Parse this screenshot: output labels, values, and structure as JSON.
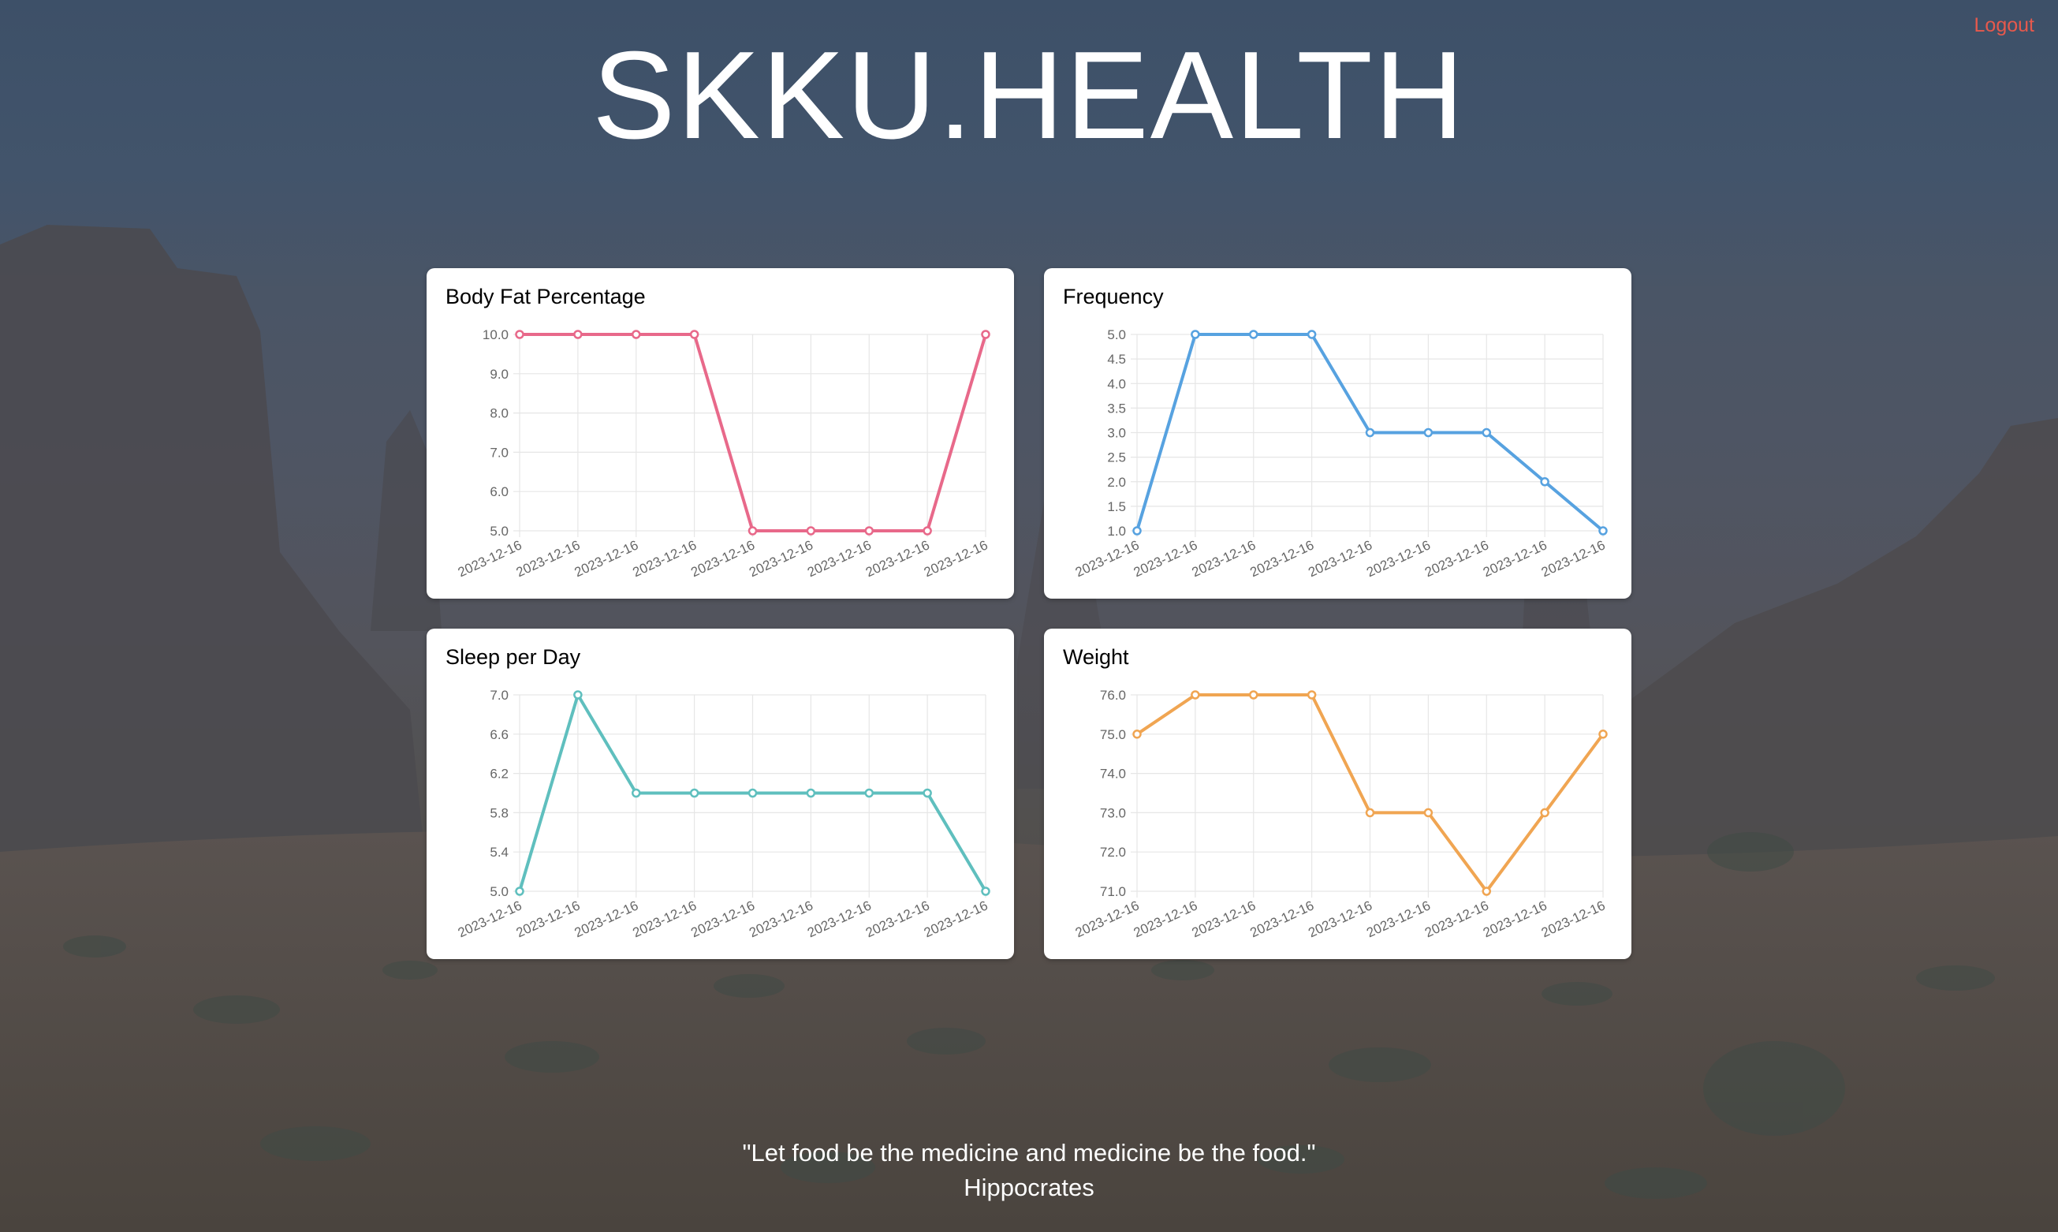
{
  "header": {
    "title": "SKKU.HEALTH",
    "logout_label": "Logout"
  },
  "quote": {
    "text": "\"Let food be the medicine and medicine be the food.\"",
    "author": "Hippocrates"
  },
  "colors": {
    "logout": "#e7594c",
    "body_fat": "#e8698a",
    "frequency": "#57a2e0",
    "sleep": "#5fbfbe",
    "weight": "#f0a552"
  },
  "chart_data": [
    {
      "type": "line",
      "title": "Body Fat Percentage",
      "color": "#e8698a",
      "categories": [
        "2023-12-16",
        "2023-12-16",
        "2023-12-16",
        "2023-12-16",
        "2023-12-16",
        "2023-12-16",
        "2023-12-16",
        "2023-12-16",
        "2023-12-16"
      ],
      "values": [
        10,
        10,
        10,
        10,
        5,
        5,
        5,
        5,
        10
      ],
      "ylim": [
        5,
        10
      ],
      "yticks": [
        "5.0",
        "6.0",
        "7.0",
        "8.0",
        "9.0",
        "10.0"
      ],
      "grid": true,
      "legend": "none"
    },
    {
      "type": "line",
      "title": "Frequency",
      "color": "#57a2e0",
      "categories": [
        "2023-12-16",
        "2023-12-16",
        "2023-12-16",
        "2023-12-16",
        "2023-12-16",
        "2023-12-16",
        "2023-12-16",
        "2023-12-16",
        "2023-12-16"
      ],
      "values": [
        1,
        5,
        5,
        5,
        3,
        3,
        3,
        2,
        1
      ],
      "ylim": [
        1,
        5
      ],
      "yticks": [
        "1.0",
        "1.5",
        "2.0",
        "2.5",
        "3.0",
        "3.5",
        "4.0",
        "4.5",
        "5.0"
      ],
      "grid": true,
      "legend": "none"
    },
    {
      "type": "line",
      "title": "Sleep per Day",
      "color": "#5fbfbe",
      "categories": [
        "2023-12-16",
        "2023-12-16",
        "2023-12-16",
        "2023-12-16",
        "2023-12-16",
        "2023-12-16",
        "2023-12-16",
        "2023-12-16",
        "2023-12-16"
      ],
      "values": [
        5,
        7,
        6,
        6,
        6,
        6,
        6,
        6,
        5
      ],
      "ylim": [
        5,
        7
      ],
      "yticks": [
        "5.0",
        "5.4",
        "5.8",
        "6.2",
        "6.6",
        "7.0"
      ],
      "grid": true,
      "legend": "none"
    },
    {
      "type": "line",
      "title": "Weight",
      "color": "#f0a552",
      "categories": [
        "2023-12-16",
        "2023-12-16",
        "2023-12-16",
        "2023-12-16",
        "2023-12-16",
        "2023-12-16",
        "2023-12-16",
        "2023-12-16",
        "2023-12-16"
      ],
      "values": [
        75,
        76,
        76,
        76,
        73,
        73,
        71,
        73,
        75
      ],
      "ylim": [
        71,
        76
      ],
      "yticks": [
        "71.0",
        "72.0",
        "73.0",
        "74.0",
        "75.0",
        "76.0"
      ],
      "grid": true,
      "legend": "none"
    }
  ]
}
